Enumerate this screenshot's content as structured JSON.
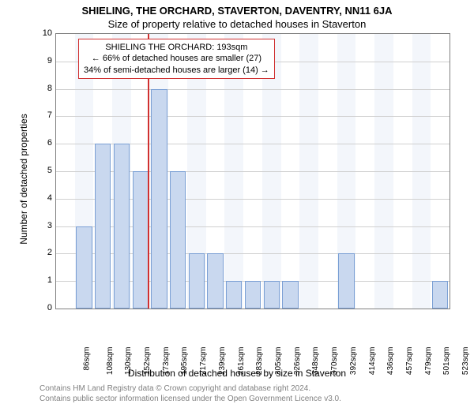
{
  "header": {
    "address": "SHIELING, THE ORCHARD, STAVERTON, DAVENTRY, NN11 6JA",
    "subtitle": "Size of property relative to detached houses in Staverton"
  },
  "chart": {
    "type": "bar",
    "ylabel": "Number of detached properties",
    "xlabel": "Distribution of detached houses by size in Staverton",
    "ylim": [
      0,
      10
    ],
    "yticks": [
      0,
      1,
      2,
      3,
      4,
      5,
      6,
      7,
      8,
      9,
      10
    ],
    "background_color": "#ffffff",
    "band_color": "#f3f6fb",
    "grid_color": "#d0d0d0",
    "bar_fill": "#c9d8ef",
    "bar_border": "#7a9fd4",
    "marker_color": "#d03030",
    "categories": [
      "86sqm",
      "108sqm",
      "130sqm",
      "152sqm",
      "173sqm",
      "195sqm",
      "217sqm",
      "239sqm",
      "261sqm",
      "283sqm",
      "305sqm",
      "326sqm",
      "348sqm",
      "370sqm",
      "392sqm",
      "414sqm",
      "436sqm",
      "457sqm",
      "479sqm",
      "501sqm",
      "523sqm"
    ],
    "values": [
      0,
      3,
      6,
      6,
      5,
      8,
      5,
      2,
      2,
      1,
      1,
      1,
      1,
      0,
      0,
      2,
      0,
      0,
      0,
      0,
      1
    ],
    "marker_index_fractional": 4.9,
    "tick_fontsize": 10,
    "label_fontsize": 12
  },
  "callout": {
    "border_color": "#d03030",
    "line1": "SHIELING THE ORCHARD: 193sqm",
    "line2": "← 66% of detached houses are smaller (27)",
    "line3": "34% of semi-detached houses are larger (14) →"
  },
  "footer": {
    "line1": "Contains HM Land Registry data © Crown copyright and database right 2024.",
    "line2": "Contains public sector information licensed under the Open Government Licence v3.0."
  }
}
